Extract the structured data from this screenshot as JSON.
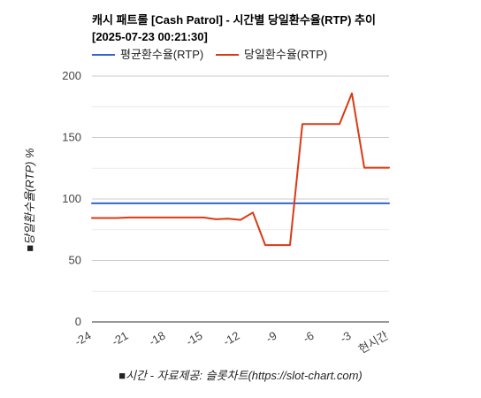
{
  "chart_data": {
    "type": "line",
    "title_line1": "캐시 패트롤 [Cash Patrol] - 시간별 당일환수율(RTP) 추이",
    "title_line2": "[2025-07-23 00:21:30]",
    "xlabel": "■시간 - 자료제공: 슬롯차트(https://slot-chart.com)",
    "ylabel": "■당일환수율(RTP) %",
    "ylim": [
      0,
      200
    ],
    "yticks": [
      0,
      50,
      100,
      150,
      200
    ],
    "xlim": [
      -24,
      0
    ],
    "xticks": [
      {
        "value": -24,
        "label": "-24"
      },
      {
        "value": -21,
        "label": "-21"
      },
      {
        "value": -18,
        "label": "-18"
      },
      {
        "value": -15,
        "label": "-15"
      },
      {
        "value": -12,
        "label": "-12"
      },
      {
        "value": -9,
        "label": "-9"
      },
      {
        "value": -6,
        "label": "-6"
      },
      {
        "value": -3,
        "label": "-3"
      },
      {
        "value": 0,
        "label": "현시간"
      }
    ],
    "grid": true,
    "legend_position": "top-left",
    "series": [
      {
        "name": "평균환수율(RTP)",
        "color": "#3366cc",
        "x": [
          -24,
          0
        ],
        "y": [
          96.5,
          96.5
        ]
      },
      {
        "name": "당일환수율(RTP)",
        "color": "#dc3912",
        "x": [
          -24,
          -23,
          -22,
          -21,
          -20,
          -19,
          -18,
          -17,
          -16,
          -15,
          -14,
          -13,
          -12,
          -11,
          -10,
          -9,
          -8,
          -7,
          -6,
          -5,
          -4,
          -3,
          -2,
          -1,
          0
        ],
        "y": [
          84.5,
          84.5,
          84.5,
          85,
          85,
          85,
          85,
          85,
          85,
          85,
          83.5,
          84,
          83,
          89,
          62.5,
          62.5,
          62.5,
          161,
          161,
          161,
          161,
          186,
          125.5,
          125.5,
          125.5
        ]
      }
    ]
  }
}
